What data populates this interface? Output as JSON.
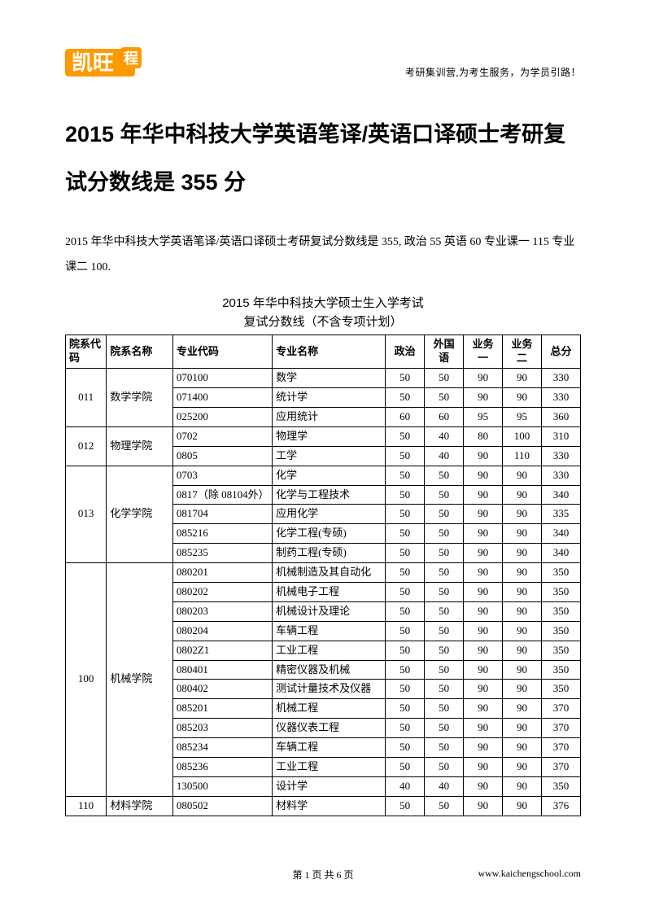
{
  "header": {
    "tagline": "考研集训营,为考生服务，为学员引路！"
  },
  "title": "2015 年华中科技大学英语笔译/英语口译硕士考研复试分数线是 355 分",
  "intro": "2015 年华中科技大学英语笔译/英语口译硕士考研复试分数线是 355, 政治 55 英语 60 专业课一 115 专业课二 100.",
  "table_title_line1": "2015 年华中科技大学硕士生入学考试",
  "table_title_line2": "复试分数线（不含专项计划）",
  "columns": {
    "dept_code": "院系代码",
    "dept_name": "院系名称",
    "major_code": "专业代码",
    "major_name": "专业名称",
    "politics": "政治",
    "foreign": "外国语",
    "course1": "业务一",
    "course2": "业务二",
    "total": "总分"
  },
  "depts": [
    {
      "code": "011",
      "name": "数学学院",
      "rows": [
        {
          "mc": "070100",
          "mn": "数学",
          "p": "50",
          "f": "50",
          "c1": "90",
          "c2": "90",
          "t": "330"
        },
        {
          "mc": "071400",
          "mn": "统计学",
          "p": "50",
          "f": "50",
          "c1": "90",
          "c2": "90",
          "t": "330"
        },
        {
          "mc": "025200",
          "mn": "应用统计",
          "p": "60",
          "f": "60",
          "c1": "95",
          "c2": "95",
          "t": "360"
        }
      ]
    },
    {
      "code": "012",
      "name": "物理学院",
      "rows": [
        {
          "mc": "0702",
          "mn": "物理学",
          "p": "50",
          "f": "40",
          "c1": "80",
          "c2": "100",
          "t": "310"
        },
        {
          "mc": "0805",
          "mn": "工学",
          "p": "50",
          "f": "40",
          "c1": "90",
          "c2": "110",
          "t": "330"
        }
      ]
    },
    {
      "code": "013",
      "name": "化学学院",
      "rows": [
        {
          "mc": "0703",
          "mn": "化学",
          "p": "50",
          "f": "50",
          "c1": "90",
          "c2": "90",
          "t": "330"
        },
        {
          "mc": "0817（除 08104外）",
          "mn": "化学与工程技术",
          "p": "50",
          "f": "50",
          "c1": "90",
          "c2": "90",
          "t": "340"
        },
        {
          "mc": "081704",
          "mn": "应用化学",
          "p": "50",
          "f": "50",
          "c1": "90",
          "c2": "90",
          "t": "335"
        },
        {
          "mc": "085216",
          "mn": "化学工程(专硕)",
          "p": "50",
          "f": "50",
          "c1": "90",
          "c2": "90",
          "t": "340"
        },
        {
          "mc": "085235",
          "mn": "制药工程(专硕)",
          "p": "50",
          "f": "50",
          "c1": "90",
          "c2": "90",
          "t": "340"
        }
      ]
    },
    {
      "code": "100",
      "name": "机械学院",
      "rows": [
        {
          "mc": "080201",
          "mn": "机械制造及其自动化",
          "p": "50",
          "f": "50",
          "c1": "90",
          "c2": "90",
          "t": "350"
        },
        {
          "mc": "080202",
          "mn": "机械电子工程",
          "p": "50",
          "f": "50",
          "c1": "90",
          "c2": "90",
          "t": "350"
        },
        {
          "mc": "080203",
          "mn": "机械设计及理论",
          "p": "50",
          "f": "50",
          "c1": "90",
          "c2": "90",
          "t": "350"
        },
        {
          "mc": "080204",
          "mn": "车辆工程",
          "p": "50",
          "f": "50",
          "c1": "90",
          "c2": "90",
          "t": "350"
        },
        {
          "mc": "0802Z1",
          "mn": "工业工程",
          "p": "50",
          "f": "50",
          "c1": "90",
          "c2": "90",
          "t": "350"
        },
        {
          "mc": "080401",
          "mn": "精密仪器及机械",
          "p": "50",
          "f": "50",
          "c1": "90",
          "c2": "90",
          "t": "350"
        },
        {
          "mc": "080402",
          "mn": "测试计量技术及仪器",
          "p": "50",
          "f": "50",
          "c1": "90",
          "c2": "90",
          "t": "350"
        },
        {
          "mc": "085201",
          "mn": "机械工程",
          "p": "50",
          "f": "50",
          "c1": "90",
          "c2": "90",
          "t": "370"
        },
        {
          "mc": "085203",
          "mn": "仪器仪表工程",
          "p": "50",
          "f": "50",
          "c1": "90",
          "c2": "90",
          "t": "370"
        },
        {
          "mc": "085234",
          "mn": "车辆工程",
          "p": "50",
          "f": "50",
          "c1": "90",
          "c2": "90",
          "t": "370"
        },
        {
          "mc": "085236",
          "mn": "工业工程",
          "p": "50",
          "f": "50",
          "c1": "90",
          "c2": "90",
          "t": "370"
        },
        {
          "mc": "130500",
          "mn": "设计学",
          "p": "40",
          "f": "40",
          "c1": "90",
          "c2": "90",
          "t": "350"
        }
      ]
    },
    {
      "code": "110",
      "name": "材料学院",
      "rows": [
        {
          "mc": "080502",
          "mn": "材料学",
          "p": "50",
          "f": "50",
          "c1": "90",
          "c2": "90",
          "t": "376"
        }
      ]
    }
  ],
  "footer": {
    "page": "第 1 页 共 6 页",
    "url": "www.kaichengschool.com"
  }
}
